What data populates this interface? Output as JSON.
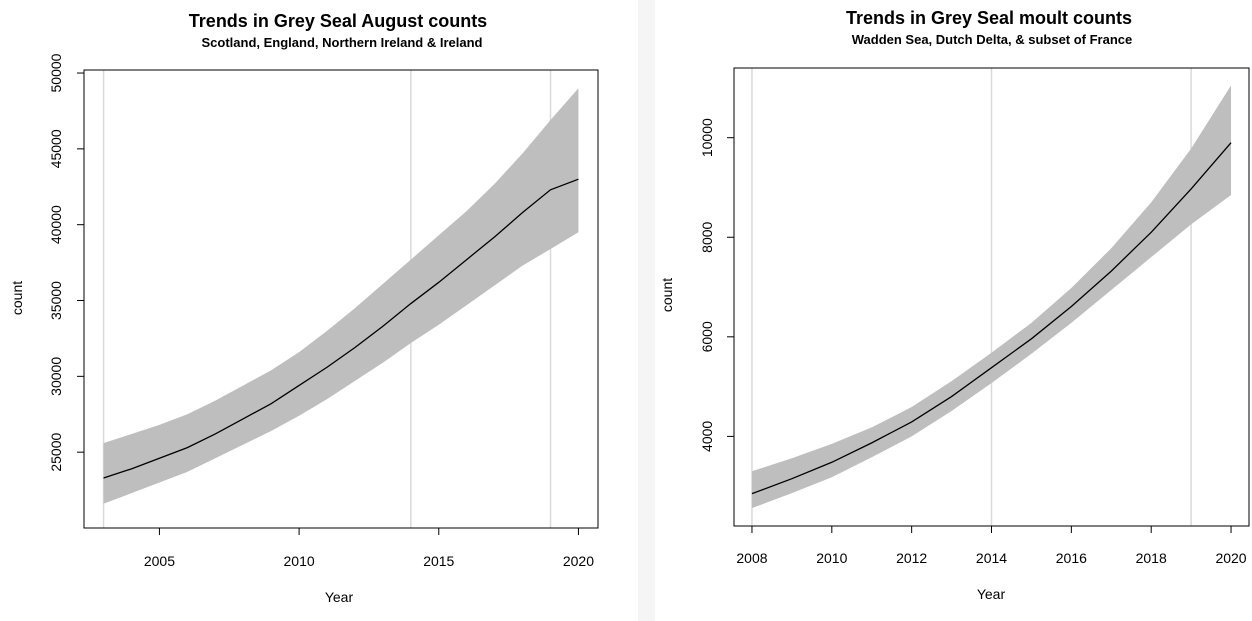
{
  "chart_data": [
    {
      "type": "area",
      "title": "Trends in Grey Seal August counts",
      "subtitle": "Scotland, England, Northern Ireland & Ireland",
      "xlabel": "Year",
      "ylabel": "count",
      "xlim": [
        2002.3,
        2020.7
      ],
      "ylim": [
        20000,
        50200
      ],
      "xticks": [
        2005,
        2010,
        2015,
        2020
      ],
      "yticks": [
        25000,
        30000,
        35000,
        40000,
        45000,
        50000
      ],
      "vlines": [
        2003,
        2014,
        2019
      ],
      "grid": false,
      "series": [
        {
          "x": [
            2003,
            2004,
            2005,
            2006,
            2007,
            2008,
            2009,
            2010,
            2011,
            2012,
            2013,
            2014,
            2015,
            2016,
            2017,
            2018,
            2019,
            2020
          ],
          "value": [
            23300,
            23900,
            24600,
            25300,
            26200,
            27200,
            28200,
            29400,
            30600,
            31900,
            33300,
            34800,
            36200,
            37700,
            39200,
            40800,
            42300,
            43000
          ],
          "lower": [
            21600,
            22300,
            23000,
            23700,
            24600,
            25500,
            26400,
            27400,
            28500,
            29700,
            30900,
            32200,
            33400,
            34700,
            36000,
            37300,
            38400,
            39500
          ],
          "upper": [
            25600,
            26200,
            26800,
            27500,
            28400,
            29400,
            30400,
            31600,
            33000,
            34500,
            36100,
            37700,
            39300,
            40900,
            42700,
            44700,
            46900,
            49000
          ]
        }
      ]
    },
    {
      "type": "area",
      "title": "Trends in Grey Seal moult counts",
      "subtitle": "Wadden Sea, Dutch Delta, & subset of France",
      "xlabel": "Year",
      "ylabel": "count",
      "xlim": [
        2007.55,
        2020.45
      ],
      "ylim": [
        2200,
        11400
      ],
      "xticks": [
        2008,
        2010,
        2012,
        2014,
        2016,
        2018,
        2020
      ],
      "yticks": [
        4000,
        6000,
        8000,
        10000
      ],
      "vlines": [
        2008,
        2014,
        2019
      ],
      "grid": false,
      "series": [
        {
          "x": [
            2008,
            2009,
            2010,
            2011,
            2012,
            2013,
            2014,
            2015,
            2016,
            2017,
            2018,
            2019,
            2020
          ],
          "value": [
            2850,
            3150,
            3480,
            3870,
            4290,
            4800,
            5380,
            5960,
            6610,
            7320,
            8100,
            8970,
            9900
          ],
          "lower": [
            2560,
            2860,
            3180,
            3580,
            4000,
            4510,
            5070,
            5660,
            6280,
            6940,
            7600,
            8260,
            8850
          ],
          "upper": [
            3300,
            3560,
            3850,
            4180,
            4590,
            5110,
            5680,
            6280,
            6980,
            7780,
            8700,
            9780,
            11050
          ]
        }
      ]
    }
  ],
  "colors": {
    "band": "#bebebe",
    "line": "#000000",
    "vline": "#d9d9d9",
    "frame": "#000000"
  }
}
